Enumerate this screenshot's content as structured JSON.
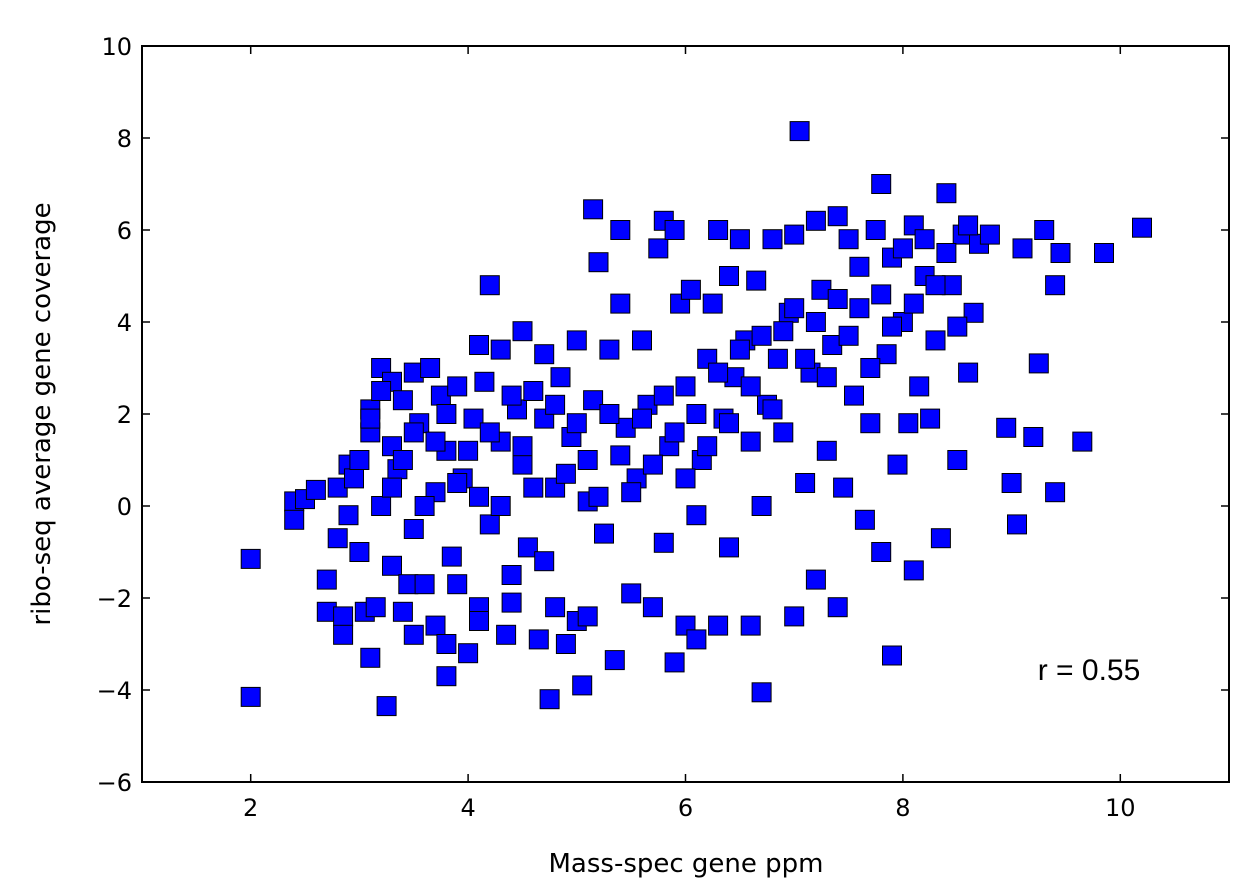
{
  "chart_data": {
    "type": "scatter",
    "xlabel": "Mass-spec gene ppm",
    "ylabel": "ribo-seq average gene coverage",
    "xlim": [
      1,
      11
    ],
    "ylim": [
      -6,
      10
    ],
    "xticks": [
      2,
      4,
      6,
      8,
      10
    ],
    "yticks": [
      -6,
      -4,
      -2,
      0,
      2,
      4,
      6,
      8,
      10
    ],
    "xtick_labels": [
      "2",
      "4",
      "6",
      "8",
      "10"
    ],
    "ytick_labels": [
      "−6",
      "−4",
      "−2",
      "0",
      "2",
      "4",
      "6",
      "8",
      "10"
    ],
    "grid": false,
    "marker": "square",
    "marker_color": "#0000ff",
    "annotation": "r = 0.55",
    "points": [
      [
        2.0,
        -1.15
      ],
      [
        2.0,
        -4.15
      ],
      [
        2.4,
        0.1
      ],
      [
        2.4,
        -0.3
      ],
      [
        2.5,
        0.15
      ],
      [
        2.6,
        0.35
      ],
      [
        2.7,
        -1.6
      ],
      [
        2.7,
        -2.3
      ],
      [
        2.8,
        -0.7
      ],
      [
        2.8,
        0.4
      ],
      [
        2.85,
        -2.4
      ],
      [
        2.85,
        -2.8
      ],
      [
        2.9,
        0.9
      ],
      [
        2.9,
        -0.2
      ],
      [
        2.95,
        0.6
      ],
      [
        3.0,
        1.0
      ],
      [
        3.0,
        -1.0
      ],
      [
        3.05,
        -2.3
      ],
      [
        3.1,
        2.1
      ],
      [
        3.1,
        1.6
      ],
      [
        3.1,
        -3.3
      ],
      [
        3.15,
        -2.2
      ],
      [
        3.2,
        3.0
      ],
      [
        3.2,
        0.0
      ],
      [
        3.25,
        -4.35
      ],
      [
        3.3,
        2.7
      ],
      [
        3.3,
        1.3
      ],
      [
        3.3,
        -1.3
      ],
      [
        3.35,
        0.8
      ],
      [
        3.4,
        -2.3
      ],
      [
        3.4,
        2.3
      ],
      [
        3.45,
        -1.7
      ],
      [
        3.5,
        2.9
      ],
      [
        3.5,
        -0.5
      ],
      [
        3.5,
        -2.8
      ],
      [
        3.55,
        1.8
      ],
      [
        3.6,
        -1.7
      ],
      [
        3.65,
        3.0
      ],
      [
        3.7,
        0.3
      ],
      [
        3.7,
        -2.6
      ],
      [
        3.75,
        2.4
      ],
      [
        3.8,
        -3.7
      ],
      [
        3.8,
        1.2
      ],
      [
        3.8,
        -3.0
      ],
      [
        3.85,
        -1.1
      ],
      [
        3.9,
        2.6
      ],
      [
        3.9,
        -1.7
      ],
      [
        3.95,
        0.6
      ],
      [
        4.0,
        -3.2
      ],
      [
        4.05,
        1.9
      ],
      [
        4.1,
        3.5
      ],
      [
        4.1,
        -2.2
      ],
      [
        4.1,
        -2.5
      ],
      [
        4.15,
        2.7
      ],
      [
        4.2,
        4.8
      ],
      [
        4.2,
        -0.4
      ],
      [
        4.3,
        1.4
      ],
      [
        4.3,
        3.4
      ],
      [
        4.35,
        -2.8
      ],
      [
        4.4,
        -1.5
      ],
      [
        4.4,
        -2.1
      ],
      [
        4.45,
        2.1
      ],
      [
        4.5,
        0.9
      ],
      [
        4.5,
        3.8
      ],
      [
        4.55,
        -0.9
      ],
      [
        4.6,
        2.5
      ],
      [
        4.65,
        -2.9
      ],
      [
        4.7,
        3.3
      ],
      [
        4.7,
        -1.2
      ],
      [
        4.75,
        -4.2
      ],
      [
        4.8,
        0.4
      ],
      [
        4.8,
        -2.2
      ],
      [
        4.85,
        2.8
      ],
      [
        4.9,
        -3.0
      ],
      [
        4.95,
        1.5
      ],
      [
        5.0,
        -2.5
      ],
      [
        5.0,
        3.6
      ],
      [
        5.05,
        -3.9
      ],
      [
        5.1,
        0.1
      ],
      [
        5.1,
        -2.4
      ],
      [
        5.15,
        2.3
      ],
      [
        5.15,
        6.45
      ],
      [
        5.2,
        5.3
      ],
      [
        5.25,
        -0.6
      ],
      [
        5.3,
        3.4
      ],
      [
        5.35,
        -3.35
      ],
      [
        5.4,
        4.4
      ],
      [
        5.4,
        6.0
      ],
      [
        5.45,
        1.7
      ],
      [
        5.5,
        -1.9
      ],
      [
        5.55,
        0.6
      ],
      [
        5.6,
        3.6
      ],
      [
        5.65,
        2.2
      ],
      [
        5.7,
        -2.2
      ],
      [
        5.75,
        5.6
      ],
      [
        5.8,
        6.2
      ],
      [
        5.8,
        -0.8
      ],
      [
        5.85,
        1.3
      ],
      [
        5.9,
        6.0
      ],
      [
        5.9,
        -3.4
      ],
      [
        5.95,
        4.4
      ],
      [
        6.0,
        2.6
      ],
      [
        6.0,
        -2.6
      ],
      [
        6.05,
        4.7
      ],
      [
        6.1,
        -0.2
      ],
      [
        6.1,
        -2.9
      ],
      [
        6.15,
        1.0
      ],
      [
        6.2,
        3.2
      ],
      [
        6.25,
        4.4
      ],
      [
        6.3,
        -2.6
      ],
      [
        6.3,
        6.0
      ],
      [
        6.35,
        1.9
      ],
      [
        6.4,
        5.0
      ],
      [
        6.4,
        -0.9
      ],
      [
        6.45,
        2.8
      ],
      [
        6.5,
        5.8
      ],
      [
        6.55,
        3.6
      ],
      [
        6.6,
        -2.6
      ],
      [
        6.6,
        1.4
      ],
      [
        6.65,
        4.9
      ],
      [
        6.7,
        -4.05
      ],
      [
        6.7,
        0.0
      ],
      [
        6.75,
        2.2
      ],
      [
        6.8,
        5.8
      ],
      [
        6.85,
        3.2
      ],
      [
        6.9,
        1.6
      ],
      [
        6.95,
        4.2
      ],
      [
        7.0,
        -2.4
      ],
      [
        7.0,
        5.9
      ],
      [
        7.05,
        8.15
      ],
      [
        7.1,
        0.5
      ],
      [
        7.15,
        2.9
      ],
      [
        7.2,
        -1.6
      ],
      [
        7.2,
        6.2
      ],
      [
        7.25,
        4.7
      ],
      [
        7.3,
        1.2
      ],
      [
        7.35,
        3.5
      ],
      [
        7.4,
        6.3
      ],
      [
        7.4,
        -2.2
      ],
      [
        7.45,
        0.4
      ],
      [
        7.5,
        5.8
      ],
      [
        7.55,
        2.4
      ],
      [
        7.6,
        4.3
      ],
      [
        7.65,
        -0.3
      ],
      [
        7.7,
        1.8
      ],
      [
        7.75,
        6.0
      ],
      [
        7.8,
        7.0
      ],
      [
        7.8,
        -1.0
      ],
      [
        7.85,
        3.3
      ],
      [
        7.9,
        -3.25
      ],
      [
        7.9,
        5.4
      ],
      [
        7.95,
        0.9
      ],
      [
        8.0,
        4.0
      ],
      [
        8.05,
        1.8
      ],
      [
        8.1,
        6.1
      ],
      [
        8.1,
        -1.4
      ],
      [
        8.15,
        2.6
      ],
      [
        8.2,
        5.0
      ],
      [
        8.25,
        1.9
      ],
      [
        8.3,
        3.6
      ],
      [
        8.35,
        -0.7
      ],
      [
        8.4,
        6.8
      ],
      [
        8.45,
        4.8
      ],
      [
        8.5,
        1.0
      ],
      [
        8.55,
        5.9
      ],
      [
        8.6,
        2.9
      ],
      [
        8.65,
        4.2
      ],
      [
        8.7,
        5.7
      ],
      [
        8.8,
        5.9
      ],
      [
        8.95,
        1.7
      ],
      [
        9.0,
        0.5
      ],
      [
        9.05,
        -0.4
      ],
      [
        9.1,
        5.6
      ],
      [
        9.2,
        1.5
      ],
      [
        9.25,
        3.1
      ],
      [
        9.3,
        6.0
      ],
      [
        9.4,
        0.3
      ],
      [
        9.4,
        4.8
      ],
      [
        9.45,
        5.5
      ],
      [
        9.65,
        1.4
      ],
      [
        9.85,
        5.5
      ],
      [
        10.2,
        6.05
      ],
      [
        3.1,
        1.9
      ],
      [
        3.2,
        2.5
      ],
      [
        3.3,
        0.4
      ],
      [
        3.4,
        1.0
      ],
      [
        3.5,
        1.6
      ],
      [
        3.6,
        0.0
      ],
      [
        3.7,
        1.4
      ],
      [
        3.8,
        2.0
      ],
      [
        3.9,
        0.5
      ],
      [
        4.0,
        1.2
      ],
      [
        4.1,
        0.2
      ],
      [
        4.2,
        1.6
      ],
      [
        4.3,
        0.0
      ],
      [
        4.4,
        2.4
      ],
      [
        4.5,
        1.3
      ],
      [
        4.6,
        0.4
      ],
      [
        4.7,
        1.9
      ],
      [
        4.8,
        2.2
      ],
      [
        4.9,
        0.7
      ],
      [
        5.0,
        1.8
      ],
      [
        5.1,
        1.0
      ],
      [
        5.2,
        0.2
      ],
      [
        5.3,
        2.0
      ],
      [
        5.4,
        1.1
      ],
      [
        5.5,
        0.3
      ],
      [
        5.6,
        1.9
      ],
      [
        5.7,
        0.9
      ],
      [
        5.8,
        2.4
      ],
      [
        5.9,
        1.6
      ],
      [
        6.0,
        0.6
      ],
      [
        6.1,
        2.0
      ],
      [
        6.2,
        1.3
      ],
      [
        6.3,
        2.9
      ],
      [
        6.4,
        1.8
      ],
      [
        6.5,
        3.4
      ],
      [
        6.6,
        2.6
      ],
      [
        6.7,
        3.7
      ],
      [
        6.8,
        2.1
      ],
      [
        6.9,
        3.8
      ],
      [
        7.0,
        4.3
      ],
      [
        7.1,
        3.2
      ],
      [
        7.2,
        4.0
      ],
      [
        7.3,
        2.8
      ],
      [
        7.4,
        4.5
      ],
      [
        7.5,
        3.7
      ],
      [
        7.6,
        5.2
      ],
      [
        7.7,
        3.0
      ],
      [
        7.8,
        4.6
      ],
      [
        7.9,
        3.9
      ],
      [
        8.0,
        5.6
      ],
      [
        8.1,
        4.4
      ],
      [
        8.2,
        5.8
      ],
      [
        8.3,
        4.8
      ],
      [
        8.4,
        5.5
      ],
      [
        8.5,
        3.9
      ],
      [
        8.6,
        6.1
      ]
    ]
  }
}
